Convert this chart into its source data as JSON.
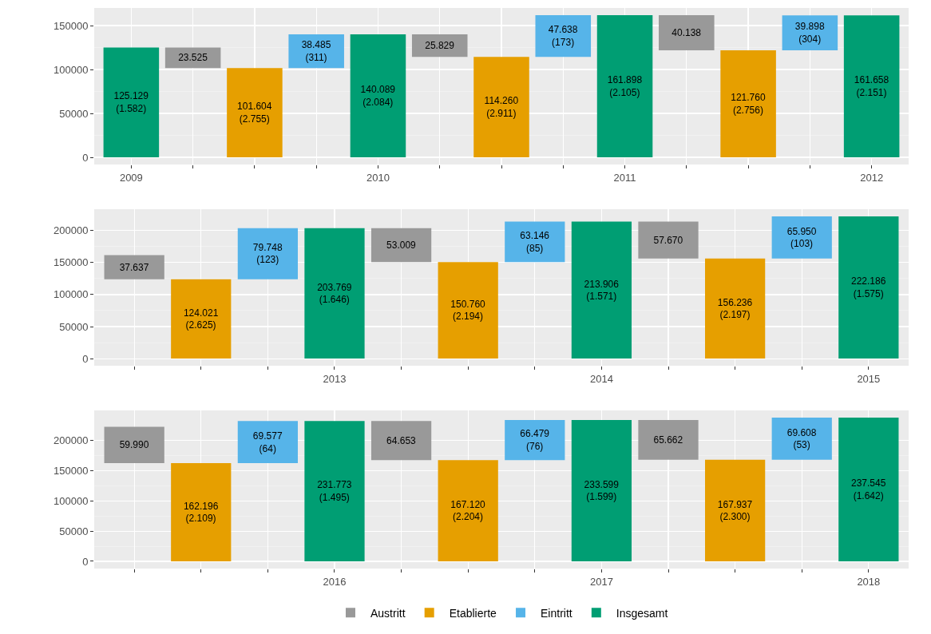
{
  "chart_data": [
    {
      "type": "bar",
      "categories": [
        "2009",
        null,
        null,
        null,
        "2010",
        null,
        null,
        null,
        "2011",
        null,
        null,
        null,
        "2012"
      ],
      "ylim": [
        -8100,
        170000
      ],
      "yticks": [
        0,
        50000,
        100000,
        150000
      ],
      "grid": true,
      "legend": false,
      "series": [
        {
          "color": "#999999",
          "values": [
            null,
            23525,
            null,
            null,
            null,
            25829,
            null,
            null,
            null,
            40138,
            null,
            null,
            null
          ],
          "base": [
            null,
            101604,
            null,
            null,
            null,
            114260,
            null,
            null,
            null,
            121760,
            null,
            null,
            null
          ],
          "value_labels": [
            null,
            "23.525",
            null,
            null,
            null,
            "25.829",
            null,
            null,
            null,
            "40.138",
            null,
            null,
            null
          ]
        },
        {
          "color": "#e69f00",
          "values": [
            null,
            null,
            101604,
            null,
            null,
            null,
            114260,
            null,
            null,
            null,
            121760,
            null,
            null
          ],
          "value_labels": [
            null,
            null,
            "101.604\n(2.755)",
            null,
            null,
            null,
            "114.260\n(2.911)",
            null,
            null,
            null,
            "121.760\n(2.756)",
            null,
            null
          ]
        },
        {
          "color": "#56b4e9",
          "values": [
            null,
            null,
            null,
            38485,
            null,
            null,
            null,
            47638,
            null,
            null,
            null,
            39898,
            null
          ],
          "base": [
            null,
            null,
            null,
            101604,
            null,
            null,
            null,
            114260,
            null,
            null,
            null,
            121760,
            null
          ],
          "value_labels": [
            null,
            null,
            null,
            "38.485\n(311)",
            null,
            null,
            null,
            "47.638\n(173)",
            null,
            null,
            null,
            "39.898\n(304)",
            null
          ]
        },
        {
          "color": "#009e73",
          "values": [
            125129,
            null,
            null,
            null,
            140089,
            null,
            null,
            null,
            161898,
            null,
            null,
            null,
            161658
          ],
          "value_labels": [
            "125.129\n(1.582)",
            null,
            null,
            null,
            "140.089\n(2.084)",
            null,
            null,
            null,
            "161.898\n(2.105)",
            null,
            null,
            null,
            "161.658\n(2.151)"
          ]
        }
      ]
    },
    {
      "type": "bar",
      "categories": [
        null,
        null,
        null,
        "2013",
        null,
        null,
        null,
        "2014",
        null,
        null,
        null,
        "2015"
      ],
      "ylim": [
        -11100,
        233300
      ],
      "yticks": [
        0,
        50000,
        100000,
        150000,
        200000
      ],
      "grid": true,
      "legend": false,
      "series": [
        {
          "color": "#999999",
          "values": [
            37637,
            null,
            null,
            null,
            53009,
            null,
            null,
            null,
            57670,
            null,
            null,
            null
          ],
          "base": [
            124021,
            null,
            null,
            null,
            150760,
            null,
            null,
            null,
            156236,
            null,
            null,
            null
          ],
          "value_labels": [
            "37.637",
            null,
            null,
            null,
            "53.009",
            null,
            null,
            null,
            "57.670",
            null,
            null,
            null
          ]
        },
        {
          "color": "#e69f00",
          "values": [
            null,
            124021,
            null,
            null,
            null,
            150760,
            null,
            null,
            null,
            156236,
            null,
            null
          ],
          "value_labels": [
            null,
            "124.021\n(2.625)",
            null,
            null,
            null,
            "150.760\n(2.194)",
            null,
            null,
            null,
            "156.236\n(2.197)",
            null,
            null
          ]
        },
        {
          "color": "#56b4e9",
          "values": [
            null,
            null,
            79748,
            null,
            null,
            null,
            63146,
            null,
            null,
            null,
            65950,
            null
          ],
          "base": [
            null,
            null,
            124021,
            null,
            null,
            null,
            150760,
            null,
            null,
            null,
            156236,
            null
          ],
          "value_labels": [
            null,
            null,
            "79.748\n(123)",
            null,
            null,
            null,
            "63.146\n(85)",
            null,
            null,
            null,
            "65.950\n(103)",
            null
          ]
        },
        {
          "color": "#009e73",
          "values": [
            null,
            null,
            null,
            203769,
            null,
            null,
            null,
            213906,
            null,
            null,
            null,
            222186
          ],
          "value_labels": [
            null,
            null,
            null,
            "203.769\n(1.646)",
            null,
            null,
            null,
            "213.906\n(1.571)",
            null,
            null,
            null,
            "222.186\n(1.575)"
          ]
        }
      ]
    },
    {
      "type": "bar",
      "categories": [
        null,
        null,
        null,
        "2016",
        null,
        null,
        null,
        "2017",
        null,
        null,
        null,
        "2018"
      ],
      "ylim": [
        -11900,
        249400
      ],
      "yticks": [
        0,
        50000,
        100000,
        150000,
        200000
      ],
      "grid": true,
      "legend": "bottom",
      "series": [
        {
          "name": "Austritt",
          "color": "#999999",
          "values": [
            59990,
            null,
            null,
            null,
            64653,
            null,
            null,
            null,
            65662,
            null,
            null,
            null
          ],
          "base": [
            162196,
            null,
            null,
            null,
            167120,
            null,
            null,
            null,
            167937,
            null,
            null,
            null
          ],
          "value_labels": [
            "59.990",
            null,
            null,
            null,
            "64.653",
            null,
            null,
            null,
            "65.662",
            null,
            null,
            null
          ]
        },
        {
          "name": "Etablierte",
          "color": "#e69f00",
          "values": [
            null,
            162196,
            null,
            null,
            null,
            167120,
            null,
            null,
            null,
            167937,
            null,
            null
          ],
          "value_labels": [
            null,
            "162.196\n(2.109)",
            null,
            null,
            null,
            "167.120\n(2.204)",
            null,
            null,
            null,
            "167.937\n(2.300)",
            null,
            null
          ]
        },
        {
          "name": "Eintritt",
          "color": "#56b4e9",
          "values": [
            null,
            null,
            69577,
            null,
            null,
            null,
            66479,
            null,
            null,
            null,
            69608,
            null
          ],
          "base": [
            null,
            null,
            162196,
            null,
            null,
            null,
            167120,
            null,
            null,
            null,
            167937,
            null
          ],
          "value_labels": [
            null,
            null,
            "69.577\n(64)",
            null,
            null,
            null,
            "66.479\n(76)",
            null,
            null,
            null,
            "69.608\n(53)",
            null
          ]
        },
        {
          "name": "Insgesamt",
          "color": "#009e73",
          "values": [
            null,
            null,
            null,
            231773,
            null,
            null,
            null,
            233599,
            null,
            null,
            null,
            237545
          ],
          "value_labels": [
            null,
            null,
            null,
            "231.773\n(1.495)",
            null,
            null,
            null,
            "233.599\n(1.599)",
            null,
            null,
            null,
            "237.545\n(1.642)"
          ]
        }
      ]
    }
  ]
}
